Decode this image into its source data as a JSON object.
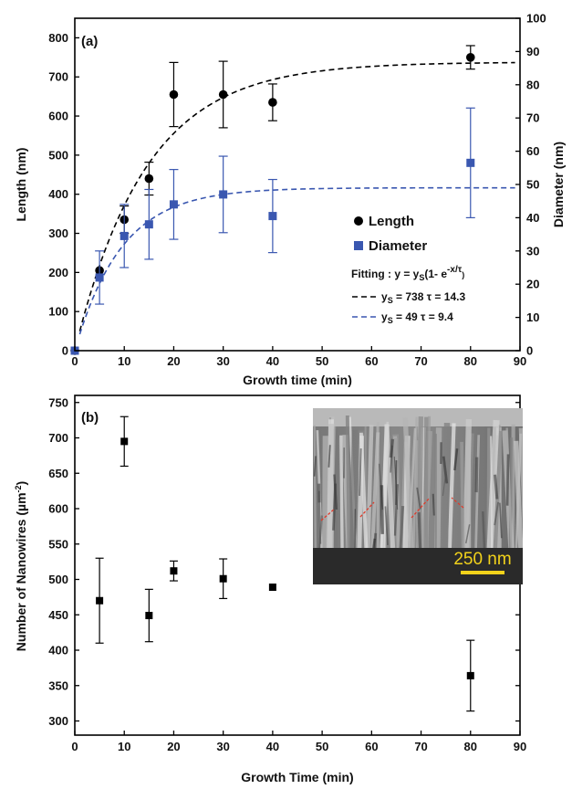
{
  "chart_data": [
    {
      "type": "scatter",
      "panel_label": "(a)",
      "xlabel": "Growth time (min)",
      "ylabel": "Length (nm)",
      "y2label": "Diameter (nm)",
      "xlim": [
        0,
        90
      ],
      "ylim": [
        0,
        850
      ],
      "y2lim": [
        0,
        100
      ],
      "xticks": [
        0,
        10,
        20,
        30,
        40,
        50,
        60,
        70,
        80,
        90
      ],
      "yticks": [
        0,
        100,
        200,
        300,
        400,
        500,
        600,
        700,
        800
      ],
      "y2ticks": [
        0,
        10,
        20,
        30,
        40,
        50,
        60,
        70,
        80,
        90,
        100
      ],
      "legend_position": "center-right",
      "series": [
        {
          "name": "Length",
          "axis": "left",
          "marker": "circle",
          "color": "#000000",
          "x": [
            0,
            5,
            10,
            15,
            20,
            30,
            40,
            80
          ],
          "y": [
            0,
            205,
            335,
            440,
            655,
            655,
            635,
            750
          ],
          "err": [
            0,
            0,
            35,
            42,
            82,
            85,
            47,
            30
          ]
        },
        {
          "name": "Diameter",
          "axis": "right",
          "marker": "square",
          "color": "#3a57b0",
          "x": [
            0,
            5,
            10,
            15,
            20,
            30,
            40,
            80
          ],
          "y": [
            0,
            22,
            34.5,
            38,
            44,
            47,
            40.5,
            56.5
          ],
          "err": [
            0,
            8,
            9.5,
            10.5,
            10.5,
            11.5,
            11,
            16.5
          ]
        }
      ],
      "fits": [
        {
          "label": "y",
          "subscript": "S",
          "text": " = 738  τ = 14.3",
          "ys": 738,
          "tau": 14.3,
          "axis": "left",
          "color": "#000000",
          "x_range": [
            1,
            89
          ]
        },
        {
          "label": "y",
          "subscript": "S",
          "text": " = 49  τ = 9.4",
          "ys": 49,
          "tau": 9.4,
          "axis": "right",
          "color": "#3a57b0",
          "x_range": [
            1,
            89
          ]
        }
      ],
      "fit_equation": {
        "prefix": "Fitting : y = y",
        "sub": "S",
        "middle": "(1- e",
        "sup": "-x/τ",
        "suffix": ")"
      }
    },
    {
      "type": "scatter",
      "panel_label": "(b)",
      "xlabel": "Growth Time (min)",
      "ylabel": "Number of Nanowires (µm",
      "ylabel_sup": "-2",
      "ylabel_close": ")",
      "xlim": [
        0,
        90
      ],
      "ylim": [
        280,
        760
      ],
      "xticks": [
        0,
        10,
        20,
        30,
        40,
        50,
        60,
        70,
        80,
        90
      ],
      "yticks": [
        300,
        350,
        400,
        450,
        500,
        550,
        600,
        650,
        700,
        750
      ],
      "series": [
        {
          "marker": "square",
          "color": "#000000",
          "x": [
            5,
            10,
            15,
            20,
            30,
            40,
            80
          ],
          "y": [
            470,
            695,
            449,
            512,
            501,
            489,
            364
          ],
          "err": [
            60,
            35,
            37,
            14,
            28,
            0,
            50
          ]
        }
      ],
      "inset": {
        "scale_label": "250 nm",
        "scale_color": "#f2d21b"
      }
    }
  ]
}
